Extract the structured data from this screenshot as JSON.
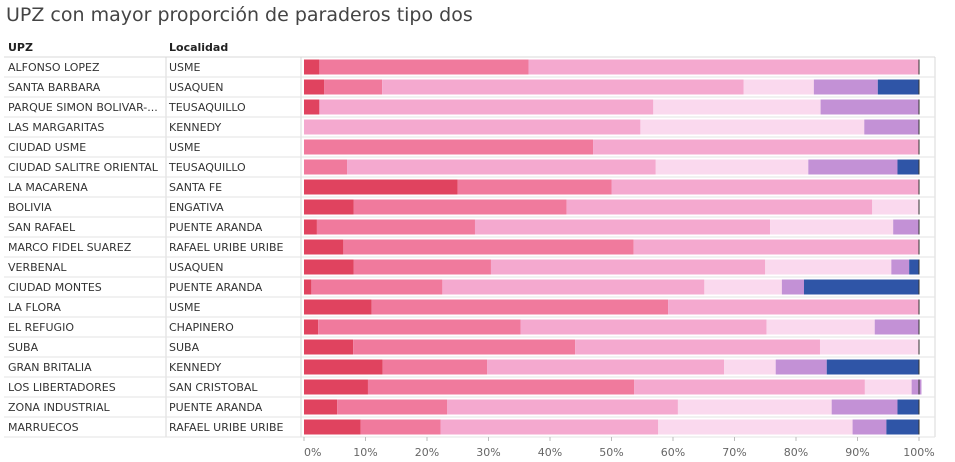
{
  "title": "UPZ con mayor proporción de paraderos tipo dos",
  "columns": {
    "upz": "UPZ",
    "localidad": "Localidad"
  },
  "chart_data": {
    "type": "bar",
    "orientation": "horizontal",
    "stacked": "100%",
    "xlim": [
      0,
      100
    ],
    "xticks": [
      "0%",
      "10%",
      "20%",
      "30%",
      "40%",
      "50%",
      "60%",
      "70%",
      "80%",
      "90%",
      "100%"
    ],
    "legend": "none",
    "grid": false,
    "segment_colors": [
      "#e0435f",
      "#f07a9d",
      "#f4a9cf",
      "#fad9ee",
      "#c391d6",
      "#2f55a7"
    ],
    "rows": [
      {
        "upz": "ALFONSO LOPEZ",
        "localidad": "USME",
        "values": [
          2.5,
          34,
          63.5,
          0,
          0,
          0
        ]
      },
      {
        "upz": "SANTA BARBARA",
        "localidad": "USAQUEN",
        "values": [
          3.3,
          9.4,
          58.8,
          11.4,
          10.4,
          6.7
        ]
      },
      {
        "upz": "PARQUE SIMON BOLIVAR-...",
        "localidad": "TEUSAQUILLO",
        "values": [
          2.5,
          0,
          54.3,
          27.2,
          16,
          0
        ]
      },
      {
        "upz": "LAS MARGARITAS",
        "localidad": "KENNEDY",
        "values": [
          0,
          0,
          54.7,
          36.4,
          8.9,
          0
        ]
      },
      {
        "upz": "CIUDAD USME",
        "localidad": "USME",
        "values": [
          0,
          47,
          53,
          0,
          0,
          0
        ]
      },
      {
        "upz": "CIUDAD SALITRE ORIENTAL",
        "localidad": "TEUSAQUILLO",
        "values": [
          0,
          7,
          50.2,
          24.8,
          14.5,
          3.5
        ]
      },
      {
        "upz": "LA MACARENA",
        "localidad": "SANTA FE",
        "values": [
          25,
          25,
          50,
          0,
          0,
          0
        ]
      },
      {
        "upz": "BOLIVIA",
        "localidad": "ENGATIVA",
        "values": [
          8.1,
          34.6,
          49.7,
          7.6,
          0,
          0
        ]
      },
      {
        "upz": "SAN RAFAEL",
        "localidad": "PUENTE ARANDA",
        "values": [
          2.1,
          25.7,
          48,
          20,
          4.2,
          0
        ]
      },
      {
        "upz": "MARCO FIDEL SUAREZ",
        "localidad": "RAFAEL URIBE URIBE",
        "values": [
          6.4,
          47.2,
          46.4,
          0,
          0,
          0
        ]
      },
      {
        "upz": "VERBENAL",
        "localidad": "USAQUEN",
        "values": [
          8.1,
          22.3,
          44.6,
          20.5,
          2.9,
          1.6
        ]
      },
      {
        "upz": "CIUDAD MONTES",
        "localidad": "PUENTE ARANDA",
        "values": [
          1.2,
          21.3,
          42.6,
          12.6,
          3.6,
          18.7
        ]
      },
      {
        "upz": "LA FLORA",
        "localidad": "USME",
        "values": [
          11,
          48.2,
          40.8,
          0,
          0,
          0
        ]
      },
      {
        "upz": "EL REFUGIO",
        "localidad": "CHAPINERO",
        "values": [
          2.3,
          32.9,
          40,
          17.6,
          7.2,
          0
        ]
      },
      {
        "upz": "SUBA",
        "localidad": "SUBA",
        "values": [
          8,
          36.1,
          39.8,
          16.1,
          0,
          0
        ]
      },
      {
        "upz": "GRAN BRITALIA",
        "localidad": "KENNEDY",
        "values": [
          12.8,
          17,
          38.5,
          8.4,
          8.3,
          15
        ]
      },
      {
        "upz": "LOS LIBERTADORES",
        "localidad": "SAN CRISTOBAL",
        "values": [
          10.4,
          43.3,
          37.5,
          7.6,
          1.6,
          0
        ]
      },
      {
        "upz": "ZONA INDUSTRIAL",
        "localidad": "PUENTE ARANDA",
        "values": [
          5.4,
          17.9,
          37.5,
          25,
          10.7,
          3.5
        ]
      },
      {
        "upz": "MARRUECOS",
        "localidad": "RAFAEL URIBE URIBE",
        "values": [
          9.2,
          13,
          35.4,
          31.6,
          5.5,
          5.3
        ]
      }
    ]
  }
}
